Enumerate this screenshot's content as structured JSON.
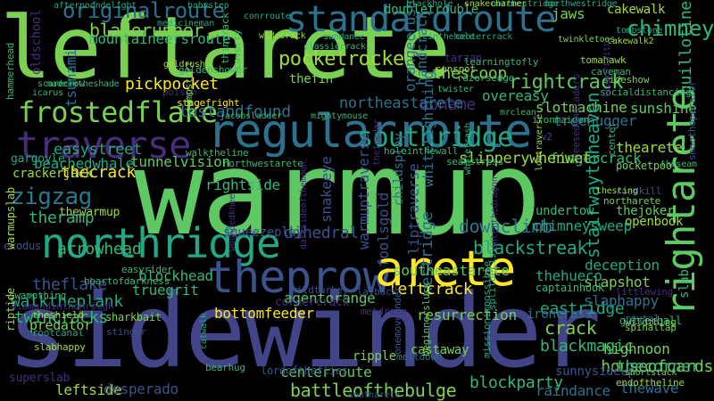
{
  "palette": {
    "background": "#000000",
    "green": "#7ad151",
    "lightgreen": "#a0da39",
    "teal": "#22a884",
    "blue": "#3b528b",
    "steel": "#2c728e",
    "purple": "#440154",
    "violet": "#472d7b",
    "yellow": "#fde725"
  },
  "words": [
    {
      "text": "leftarete",
      "color": "#7ad151"
    },
    {
      "text": "warmup",
      "color": "#5ec962"
    },
    {
      "text": "sidewinder",
      "color": "#414487"
    },
    {
      "text": "standardroute",
      "color": "#2c728e"
    },
    {
      "text": "regularroute",
      "color": "#2c728e"
    },
    {
      "text": "traverse",
      "color": "#472d7b"
    },
    {
      "text": "northridge",
      "color": "#22a884"
    },
    {
      "text": "theprow",
      "color": "#3b528b"
    },
    {
      "text": "arete",
      "color": "#fde725"
    },
    {
      "text": "rightarete",
      "color": "#5ec962"
    },
    {
      "text": "frostedflake",
      "color": "#7ad151"
    },
    {
      "text": "zigzag",
      "color": "#2a788e"
    },
    {
      "text": "originalroute",
      "color": "#2c728e"
    },
    {
      "text": "pocketrocket",
      "color": "#a0da39"
    },
    {
      "text": "bladerunner",
      "color": "#7ad151"
    },
    {
      "text": "southridge",
      "color": "#22a884"
    },
    {
      "text": "rightcrack",
      "color": "#5ec962"
    },
    {
      "text": "pickpocket",
      "color": "#fde725"
    },
    {
      "text": "chimney",
      "color": "#35b779"
    },
    {
      "text": "jaws",
      "color": "#7ad151"
    },
    {
      "text": "cakewalk",
      "color": "#a0da39"
    },
    {
      "text": "thecrack",
      "color": "#fde725"
    },
    {
      "text": "easystreet",
      "color": "#22a884"
    },
    {
      "text": "thewarmup",
      "color": "#a0da39"
    },
    {
      "text": "downclimb",
      "color": "#2c728e"
    },
    {
      "text": "westridge",
      "color": "#2c728e"
    },
    {
      "text": "dihedral",
      "color": "#3b528b"
    },
    {
      "text": "leftcrack",
      "color": "#fde725"
    },
    {
      "text": "blackstreak",
      "color": "#22a884"
    },
    {
      "text": "eastridge",
      "color": "#22a884"
    },
    {
      "text": "crack",
      "color": "#7ad151"
    },
    {
      "text": "blackmagic",
      "color": "#35b779"
    },
    {
      "text": "battleofthebulge",
      "color": "#7ad151"
    },
    {
      "text": "blockparty",
      "color": "#35b779"
    },
    {
      "text": "centerroute",
      "color": "#5ec962"
    },
    {
      "text": "leftside",
      "color": "#a0da39"
    },
    {
      "text": "desperado",
      "color": "#3b528b"
    },
    {
      "text": "raindance",
      "color": "#2c728e"
    },
    {
      "text": "thewave",
      "color": "#2c728e"
    },
    {
      "text": "houseofcards",
      "color": "#7ad151"
    },
    {
      "text": "highnoon",
      "color": "#7ad151"
    },
    {
      "text": "thecorner",
      "color": "#35b779"
    },
    {
      "text": "slapshot",
      "color": "#7ad151"
    },
    {
      "text": "bottomfeeder",
      "color": "#fde725"
    },
    {
      "text": "agentorange",
      "color": "#5ec962"
    },
    {
      "text": "resurrection",
      "color": "#7ad151"
    },
    {
      "text": "theflake",
      "color": "#3b528b"
    },
    {
      "text": "walktheplank",
      "color": "#22a884"
    },
    {
      "text": "truegrit",
      "color": "#35b779"
    },
    {
      "text": "blockhead",
      "color": "#35b779"
    },
    {
      "text": "twincracks",
      "color": "#35b779"
    },
    {
      "text": "predator",
      "color": "#7ad151"
    },
    {
      "text": "arrowhead",
      "color": "#35b779"
    },
    {
      "text": "theramp",
      "color": "#35b779"
    },
    {
      "text": "lostandfound",
      "color": "#2c728e"
    },
    {
      "text": "noname",
      "color": "#472d7b"
    },
    {
      "text": "slotmachine",
      "color": "#7ad151"
    },
    {
      "text": "treehugger",
      "color": "#2c728e"
    },
    {
      "text": "northeastarete",
      "color": "#2c728e"
    },
    {
      "text": "thearete",
      "color": "#a0da39"
    },
    {
      "text": "fingercrack",
      "color": "#35b779"
    },
    {
      "text": "slipperywhenwet",
      "color": "#a0da39"
    },
    {
      "text": "beachedwhale",
      "color": "#22a884"
    },
    {
      "text": "tunnelvision",
      "color": "#5ec962"
    },
    {
      "text": "stairwaytoheaven",
      "color": "#22a884"
    },
    {
      "text": "deception",
      "color": "#22a884"
    },
    {
      "text": "slaphappy",
      "color": "#2c728e"
    },
    {
      "text": "ironcross",
      "color": "#2c728e"
    },
    {
      "text": "sunnysideup",
      "color": "#3b528b"
    },
    {
      "text": "tsunami",
      "color": "#2c728e"
    },
    {
      "text": "oldschool",
      "color": "#472d7b"
    },
    {
      "text": "handcrack",
      "color": "#2c728e"
    },
    {
      "text": "thescoop",
      "color": "#7ad151"
    },
    {
      "text": "overeasy",
      "color": "#35b779"
    },
    {
      "text": "orangecrush",
      "color": "#2c728e"
    },
    {
      "text": "thefin",
      "color": "#7ad151"
    },
    {
      "text": "guillotine",
      "color": "#35b779"
    },
    {
      "text": "sunshine",
      "color": "#5ec962"
    },
    {
      "text": "doubletrouble",
      "color": "#35b779"
    },
    {
      "text": "mountaineersroute",
      "color": "#35b779"
    },
    {
      "text": "rightside",
      "color": "#35b779"
    },
    {
      "text": "snakeeye",
      "color": "#3b528b"
    },
    {
      "text": "foolsgold",
      "color": "#3b528b"
    },
    {
      "text": "warmuptraverse",
      "color": "#3b528b"
    },
    {
      "text": "squeezeplay",
      "color": "#3b528b"
    },
    {
      "text": "thejoker",
      "color": "#5ec962"
    },
    {
      "text": "openbook",
      "color": "#a0da39"
    },
    {
      "text": "southeastarete",
      "color": "#5ec962"
    },
    {
      "text": "cornercrack",
      "color": "#472d7b"
    },
    {
      "text": "thehueco",
      "color": "#22a884"
    },
    {
      "text": "chimneysweep",
      "color": "#22a884"
    },
    {
      "text": "undertow",
      "color": "#35b779"
    },
    {
      "text": "childsplay",
      "color": "#2c728e"
    },
    {
      "text": "whitelightning",
      "color": "#2c728e"
    },
    {
      "text": "liptraverse",
      "color": "#3b528b"
    },
    {
      "text": "crackerjack",
      "color": "#a0da39"
    },
    {
      "text": "gargoyle",
      "color": "#22a884"
    },
    {
      "text": "walktheline",
      "color": "#35b779"
    },
    {
      "text": "northwestarete",
      "color": "#35b779"
    },
    {
      "text": "holeinthewall",
      "color": "#35b779"
    },
    {
      "text": "seamstress",
      "color": "#35b779"
    },
    {
      "text": "pocketpool",
      "color": "#7ad151"
    },
    {
      "text": "roadkill",
      "color": "#3b528b"
    },
    {
      "text": "gutterball",
      "color": "#35b779"
    },
    {
      "text": "littlewing",
      "color": "#472d7b"
    },
    {
      "text": "wildthing",
      "color": "#7ad151"
    },
    {
      "text": "spinaltap",
      "color": "#7ad151"
    },
    {
      "text": "route1",
      "color": "#2c728e"
    },
    {
      "text": "shortstack",
      "color": "#7ad151"
    },
    {
      "text": "endoftheline",
      "color": "#a0da39"
    },
    {
      "text": "slab",
      "color": "#35b779"
    },
    {
      "text": "captainhook",
      "color": "#35b779"
    },
    {
      "text": "layback",
      "color": "#3b528b"
    },
    {
      "text": "metdream",
      "color": "#472d7b"
    },
    {
      "text": "castaway",
      "color": "#7ad151"
    },
    {
      "text": "ripple",
      "color": "#7ad151"
    },
    {
      "text": "meltdown",
      "color": "#2c728e"
    },
    {
      "text": "beginnersluck",
      "color": "#5ec962"
    },
    {
      "text": "missionimpossible",
      "color": "#22a884"
    },
    {
      "text": "splitdecision",
      "color": "#22a884"
    },
    {
      "text": "onemoveonder",
      "color": "#3b528b"
    },
    {
      "text": "southarete",
      "color": "#3b528b"
    },
    {
      "text": "lordoftheflies",
      "color": "#3b528b"
    },
    {
      "text": "bearhug",
      "color": "#35b779"
    },
    {
      "text": "catwalk",
      "color": "#22a884"
    },
    {
      "text": "wildturkey",
      "color": "#3b528b"
    },
    {
      "text": "woundedknee",
      "color": "#472d7b"
    },
    {
      "text": "stinger",
      "color": "#3b528b"
    },
    {
      "text": "sharkbait",
      "color": "#7ad151"
    },
    {
      "text": "theshield",
      "color": "#a0da39"
    },
    {
      "text": "rootcanal",
      "color": "#22a884"
    },
    {
      "text": "slabhappy",
      "color": "#a0da39"
    },
    {
      "text": "superslab",
      "color": "#472d7b"
    },
    {
      "text": "riptide",
      "color": "#a0da39"
    },
    {
      "text": "swampthing",
      "color": "#35b779"
    },
    {
      "text": "heartofdarkness",
      "color": "#35b779"
    },
    {
      "text": "easyrider",
      "color": "#35b779"
    },
    {
      "text": "exodus",
      "color": "#3b528b"
    },
    {
      "text": "warmupslab",
      "color": "#a0da39"
    },
    {
      "text": "diamondinthehrough",
      "color": "#472d7b"
    },
    {
      "text": "madeintheshade",
      "color": "#35b779"
    },
    {
      "text": "icarus",
      "color": "#35b779"
    },
    {
      "text": "scarecrow",
      "color": "#35b779"
    },
    {
      "text": "hammerhead",
      "color": "#35b779"
    },
    {
      "text": "afternoondelight",
      "color": "#22a884"
    },
    {
      "text": "babystep",
      "color": "#22a884"
    },
    {
      "text": "medicineman",
      "color": "#22a884"
    },
    {
      "text": "conrroute",
      "color": "#22a884"
    },
    {
      "text": "blackhole",
      "color": "#22a884"
    },
    {
      "text": "northestridge",
      "color": "#22a884"
    },
    {
      "text": "snakecharmer",
      "color": "#a0da39"
    },
    {
      "text": "northwestridge",
      "color": "#22a884"
    },
    {
      "text": "tombstone",
      "color": "#22a884"
    },
    {
      "text": "cakewalk2",
      "color": "#a0da39"
    },
    {
      "text": "twinkletoes",
      "color": "#7ad151"
    },
    {
      "text": "widecrack",
      "color": "#a0da39"
    },
    {
      "text": "sundance",
      "color": "#22a884"
    },
    {
      "text": "fireinthehole",
      "color": "#22a884"
    },
    {
      "text": "centercrack",
      "color": "#22a884"
    },
    {
      "text": "classiccrack",
      "color": "#35b779"
    },
    {
      "text": "tarzan",
      "color": "#472d7b"
    },
    {
      "text": "sunspot",
      "color": "#a0da39"
    },
    {
      "text": "tomahawk",
      "color": "#a0da39"
    },
    {
      "text": "caveman",
      "color": "#35b779"
    },
    {
      "text": "sideshow",
      "color": "#7ad151"
    },
    {
      "text": "socialdistancing",
      "color": "#35b779"
    },
    {
      "text": "goldenshower",
      "color": "#35b779"
    },
    {
      "text": "goldrush",
      "color": "#a0da39"
    },
    {
      "text": "thincrack",
      "color": "#35b779"
    },
    {
      "text": "caverty",
      "color": "#35b779"
    },
    {
      "text": "learningtofly",
      "color": "#35b779"
    },
    {
      "text": "razorsedge",
      "color": "#35b779"
    },
    {
      "text": "twister",
      "color": "#35b779"
    },
    {
      "text": "poison",
      "color": "#472d7b"
    },
    {
      "text": "stagefright",
      "color": "#fde725"
    },
    {
      "text": "jumpstart",
      "color": "#7ad151"
    },
    {
      "text": "jacobsladder",
      "color": "#35b779"
    },
    {
      "text": "mightymouse",
      "color": "#35b779"
    },
    {
      "text": "mrclean",
      "color": "#35b779"
    },
    {
      "text": "v2",
      "color": "#3b528b"
    },
    {
      "text": "ironmaiden",
      "color": "#35b779"
    },
    {
      "text": "northarete",
      "color": "#7ad151"
    },
    {
      "text": "thesting",
      "color": "#a0da39"
    },
    {
      "text": "center",
      "color": "#35b779"
    },
    {
      "text": "cheesedandladers",
      "color": "#472d7b"
    },
    {
      "text": "leapoffaith",
      "color": "#472d7b"
    },
    {
      "text": "thefeeder",
      "color": "#472d7b"
    },
    {
      "text": "whitetrash",
      "color": "#35b779"
    },
    {
      "text": "enterthedragon",
      "color": "#472d7b"
    },
    {
      "text": "darksideofthemoon",
      "color": "#472d7b"
    },
    {
      "text": "smoothoperator",
      "color": "#3b528b"
    },
    {
      "text": "theseam",
      "color": "#35b779"
    },
    {
      "text": "lowtraverse",
      "color": "#a0da39"
    },
    {
      "text": "chimneysweep2",
      "color": "#35b779"
    }
  ]
}
